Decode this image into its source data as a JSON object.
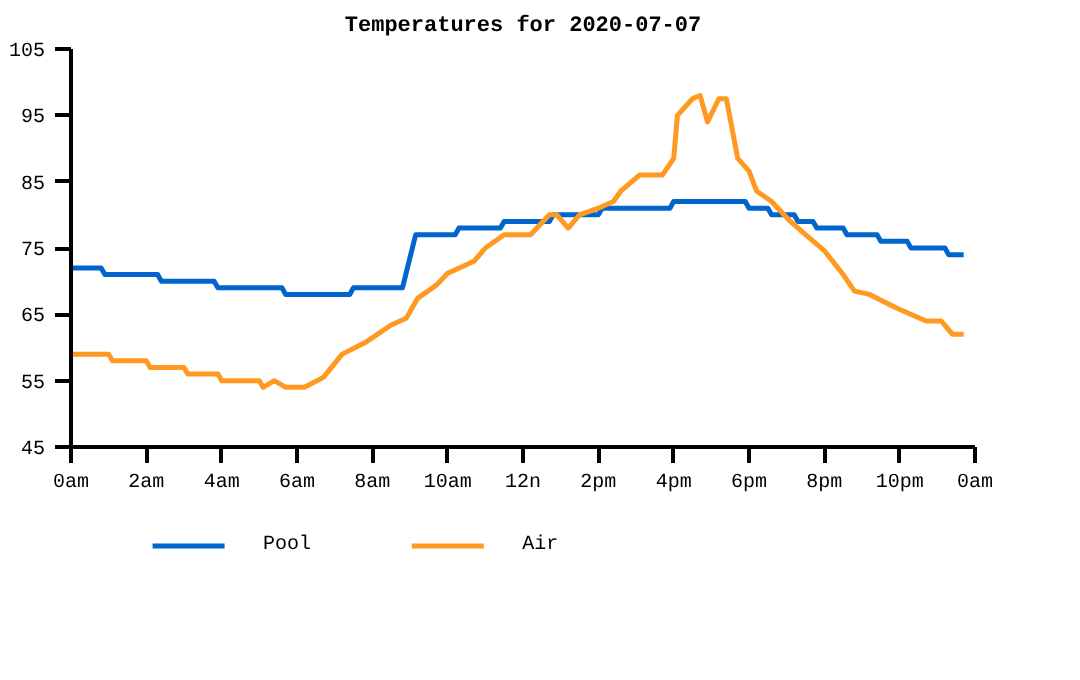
{
  "chart_data": {
    "type": "line",
    "title": "Temperatures for 2020-07-07",
    "xlim": [
      "2020-07-07T00:00",
      "2020-07-08T00:00"
    ],
    "xticks": [
      {
        "value": "2020-07-07T00:00",
        "label": "0am"
      },
      {
        "value": "2020-07-07T02:00",
        "label": "2am"
      },
      {
        "value": "2020-07-07T04:00",
        "label": "4am"
      },
      {
        "value": "2020-07-07T06:00",
        "label": "6am"
      },
      {
        "value": "2020-07-07T08:00",
        "label": "8am"
      },
      {
        "value": "2020-07-07T10:00",
        "label": "10am"
      },
      {
        "value": "2020-07-07T12:00",
        "label": "12n"
      },
      {
        "value": "2020-07-07T14:00",
        "label": "2pm"
      },
      {
        "value": "2020-07-07T16:00",
        "label": "4pm"
      },
      {
        "value": "2020-07-07T18:00",
        "label": "6pm"
      },
      {
        "value": "2020-07-07T20:00",
        "label": "8pm"
      },
      {
        "value": "2020-07-07T22:00",
        "label": "10pm"
      },
      {
        "value": "2020-07-08T00:00",
        "label": "0am"
      }
    ],
    "ylim": [
      45,
      105
    ],
    "yticks": [
      45,
      55,
      65,
      75,
      85,
      95,
      105
    ],
    "grid": false,
    "legend": "bottom",
    "line_style": "solid",
    "marker": "none",
    "series": [
      {
        "name": "Pool",
        "color": "#0066cc",
        "x": [
          "2020-07-07T00:00",
          "2020-07-07T00:48",
          "2020-07-07T00:54",
          "2020-07-07T02:18",
          "2020-07-07T02:24",
          "2020-07-07T03:48",
          "2020-07-07T03:54",
          "2020-07-07T05:36",
          "2020-07-07T05:42",
          "2020-07-07T07:24",
          "2020-07-07T07:30",
          "2020-07-07T08:48",
          "2020-07-07T09:09",
          "2020-07-07T10:12",
          "2020-07-07T10:18",
          "2020-07-07T11:24",
          "2020-07-07T11:30",
          "2020-07-07T12:42",
          "2020-07-07T12:48",
          "2020-07-07T14:00",
          "2020-07-07T14:06",
          "2020-07-07T15:54",
          "2020-07-07T16:00",
          "2020-07-07T17:54",
          "2020-07-07T18:00",
          "2020-07-07T18:30",
          "2020-07-07T18:36",
          "2020-07-07T19:12",
          "2020-07-07T19:18",
          "2020-07-07T19:42",
          "2020-07-07T19:48",
          "2020-07-07T20:30",
          "2020-07-07T20:36",
          "2020-07-07T21:24",
          "2020-07-07T21:30",
          "2020-07-07T22:12",
          "2020-07-07T22:18",
          "2020-07-07T23:12",
          "2020-07-07T23:18",
          "2020-07-07T23:42"
        ],
        "values": [
          72,
          72,
          71,
          71,
          70,
          70,
          69,
          69,
          68,
          68,
          69,
          69,
          77,
          77,
          78,
          78,
          79,
          79,
          80,
          80,
          81,
          81,
          82,
          82,
          81,
          81,
          80,
          80,
          79,
          79,
          78,
          78,
          77,
          77,
          76,
          76,
          75,
          75,
          74,
          74
        ]
      },
      {
        "name": "Air",
        "color": "#ff9922",
        "x": [
          "2020-07-07T00:00",
          "2020-07-07T01:00",
          "2020-07-07T01:06",
          "2020-07-07T02:00",
          "2020-07-07T02:06",
          "2020-07-07T03:00",
          "2020-07-07T03:06",
          "2020-07-07T03:54",
          "2020-07-07T04:00",
          "2020-07-07T05:00",
          "2020-07-07T05:06",
          "2020-07-07T05:24",
          "2020-07-07T05:42",
          "2020-07-07T06:12",
          "2020-07-07T06:42",
          "2020-07-07T07:12",
          "2020-07-07T07:48",
          "2020-07-07T08:30",
          "2020-07-07T08:54",
          "2020-07-07T09:12",
          "2020-07-07T09:42",
          "2020-07-07T10:00",
          "2020-07-07T10:42",
          "2020-07-07T11:00",
          "2020-07-07T11:30",
          "2020-07-07T12:12",
          "2020-07-07T12:42",
          "2020-07-07T12:54",
          "2020-07-07T13:12",
          "2020-07-07T13:30",
          "2020-07-07T14:00",
          "2020-07-07T14:24",
          "2020-07-07T14:36",
          "2020-07-07T15:06",
          "2020-07-07T15:42",
          "2020-07-07T16:00",
          "2020-07-07T16:06",
          "2020-07-07T16:30",
          "2020-07-07T16:42",
          "2020-07-07T16:54",
          "2020-07-07T17:12",
          "2020-07-07T17:24",
          "2020-07-07T17:42",
          "2020-07-07T18:00",
          "2020-07-07T18:12",
          "2020-07-07T18:36",
          "2020-07-07T19:06",
          "2020-07-07T19:30",
          "2020-07-07T20:00",
          "2020-07-07T20:30",
          "2020-07-07T20:48",
          "2020-07-07T21:12",
          "2020-07-07T21:54",
          "2020-07-07T22:42",
          "2020-07-07T23:06",
          "2020-07-07T23:24",
          "2020-07-07T23:42"
        ],
        "values": [
          59,
          59,
          58,
          58,
          57,
          57,
          56,
          56,
          55,
          55,
          54,
          55,
          54,
          54,
          55.5,
          59,
          60.7,
          63.4,
          64.4,
          67.4,
          69.4,
          71.2,
          73,
          75,
          77,
          77,
          80,
          80,
          78,
          80,
          81,
          82,
          83.6,
          86,
          86,
          88.5,
          95,
          97.5,
          98,
          94,
          97.5,
          97.5,
          88.5,
          86.6,
          83.6,
          82,
          79,
          77,
          74.6,
          71,
          68.5,
          68,
          66,
          64,
          64,
          62,
          62
        ]
      }
    ]
  }
}
